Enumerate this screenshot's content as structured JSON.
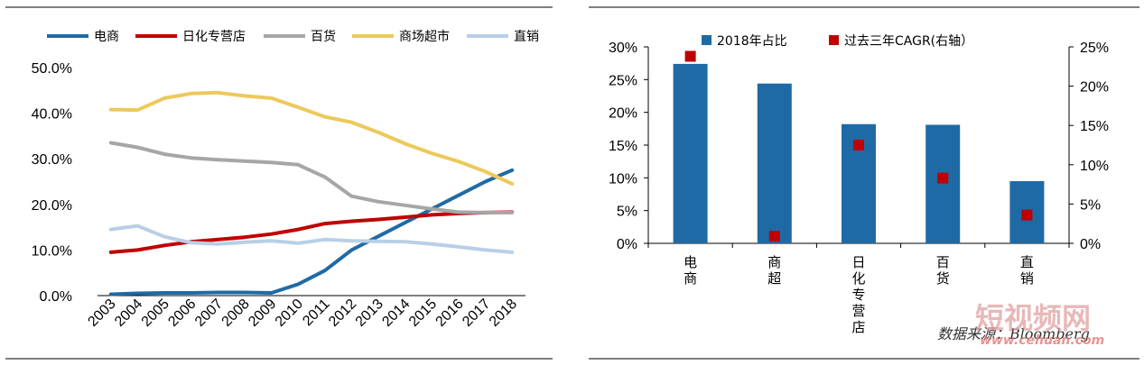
{
  "chart_data": [
    {
      "type": "line",
      "x": [
        "2003",
        "2004",
        "2005",
        "2006",
        "2007",
        "2008",
        "2009",
        "2010",
        "2011",
        "2012",
        "2013",
        "2014",
        "2015",
        "2016",
        "2017",
        "2018"
      ],
      "ylim": [
        0,
        50
      ],
      "yticks": [
        "0.0%",
        "10.0%",
        "20.0%",
        "30.0%",
        "40.0%",
        "50.0%"
      ],
      "legend_position": "top",
      "series": [
        {
          "name": "电商",
          "color": "#1f6aa5",
          "values": [
            0.3,
            0.5,
            0.6,
            0.6,
            0.7,
            0.7,
            0.6,
            2.5,
            5.5,
            10,
            13,
            16,
            19,
            22,
            25,
            27.5
          ]
        },
        {
          "name": "日化专营店",
          "color": "#c00000",
          "values": [
            9.5,
            10,
            11,
            11.8,
            12.3,
            12.8,
            13.5,
            14.5,
            15.8,
            16.3,
            16.7,
            17.2,
            17.7,
            18,
            18.2,
            18.3
          ]
        },
        {
          "name": "百货",
          "color": "#a6a6a6",
          "values": [
            33.5,
            32.5,
            31,
            30.2,
            29.8,
            29.5,
            29.2,
            28.7,
            26,
            21.8,
            20.6,
            19.8,
            19,
            18.3,
            18.2,
            18.2
          ]
        },
        {
          "name": "商场超市",
          "color": "#ecc95b",
          "values": [
            40.8,
            40.7,
            43.3,
            44.3,
            44.5,
            43.8,
            43.3,
            41.3,
            39.2,
            38,
            35.8,
            33.3,
            31.2,
            29.4,
            27.2,
            24.5
          ]
        },
        {
          "name": "直销",
          "color": "#b8cfe6",
          "values": [
            14.5,
            15.3,
            12.9,
            11.6,
            11.3,
            11.7,
            12,
            11.5,
            12.3,
            12,
            11.9,
            11.8,
            11.3,
            10.7,
            10,
            9.5
          ]
        }
      ]
    },
    {
      "type": "bar",
      "categories": [
        "电商",
        "商超",
        "日化专营店",
        "百货",
        "直销"
      ],
      "category_lines": [
        [
          "电",
          "商"
        ],
        [
          "商",
          "超"
        ],
        [
          "日",
          "化",
          "专",
          "营",
          "店"
        ],
        [
          "百",
          "货"
        ],
        [
          "直",
          "销"
        ]
      ],
      "ylim": [
        0,
        30
      ],
      "yticks": [
        "0%",
        "5%",
        "10%",
        "15%",
        "20%",
        "25%",
        "30%"
      ],
      "y2lim": [
        0,
        25
      ],
      "y2ticks": [
        "0%",
        "5%",
        "10%",
        "15%",
        "20%",
        "25%"
      ],
      "legend_position": "top",
      "series": [
        {
          "name": "2018年占比",
          "type": "bar",
          "axis": "left",
          "color": "#1f6aa5",
          "values": [
            27.4,
            24.4,
            18.2,
            18.1,
            9.5
          ]
        },
        {
          "name": "过去三年CAGR(右轴）",
          "type": "scatter",
          "axis": "right",
          "color": "#c00000",
          "values": [
            23.8,
            0.9,
            12.5,
            8.3,
            3.6
          ]
        }
      ]
    }
  ],
  "source_text": "数据来源：Bloomberg",
  "watermark": {
    "text": "短视频网",
    "url": "www.cehuan.com"
  }
}
